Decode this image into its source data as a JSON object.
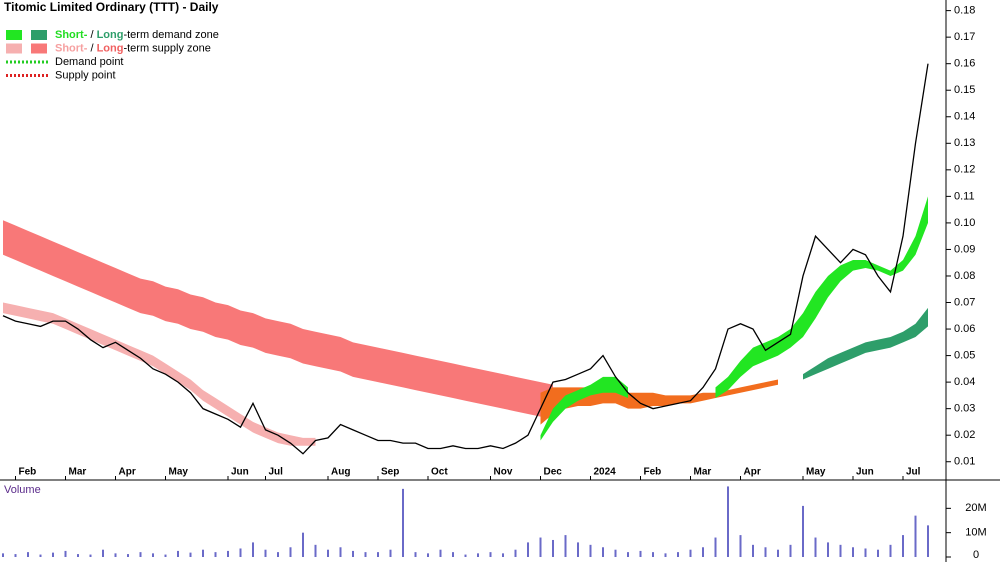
{
  "chart_data": {
    "type": "line",
    "title": "Titomic Limited Ordinary (TTT) - Daily",
    "categories": [
      null,
      "Feb",
      null,
      null,
      null,
      "Mar",
      null,
      null,
      null,
      "Apr",
      null,
      null,
      null,
      "May",
      null,
      null,
      null,
      null,
      "Jun",
      null,
      null,
      "Jul",
      null,
      null,
      null,
      null,
      "Aug",
      null,
      null,
      null,
      "Sep",
      null,
      null,
      null,
      "Oct",
      null,
      null,
      null,
      null,
      "Nov",
      null,
      null,
      null,
      "Dec",
      null,
      null,
      null,
      "2024",
      null,
      null,
      null,
      "Feb",
      null,
      null,
      null,
      "Mar",
      null,
      null,
      null,
      "Apr",
      null,
      null,
      null,
      null,
      "May",
      null,
      null,
      null,
      "Jun",
      null,
      null,
      null,
      "Jul",
      null,
      null
    ],
    "price": {
      "color": "#000000",
      "values": [
        0.065,
        0.063,
        0.062,
        0.061,
        0.063,
        0.063,
        0.06,
        0.056,
        0.053,
        0.055,
        0.052,
        0.049,
        0.045,
        0.043,
        0.04,
        0.036,
        0.03,
        0.028,
        0.026,
        0.023,
        0.032,
        0.022,
        0.02,
        0.017,
        0.013,
        0.018,
        0.019,
        0.024,
        0.022,
        0.02,
        0.018,
        0.018,
        0.017,
        0.017,
        0.015,
        0.015,
        0.016,
        0.015,
        0.015,
        0.016,
        0.015,
        0.017,
        0.02,
        0.03,
        0.04,
        0.041,
        0.043,
        0.045,
        0.05,
        0.042,
        0.036,
        0.032,
        0.03,
        0.031,
        0.032,
        0.033,
        0.038,
        0.045,
        0.06,
        0.062,
        0.06,
        0.052,
        0.055,
        0.058,
        0.08,
        0.095,
        0.09,
        0.085,
        0.09,
        0.088,
        0.08,
        0.074,
        0.095,
        0.13,
        0.16
      ]
    },
    "zones": [
      {
        "color": "#f87878",
        "upper": [
          0.101,
          0.099,
          0.097,
          0.095,
          0.093,
          0.091,
          0.089,
          0.087,
          0.085,
          0.083,
          0.081,
          0.079,
          0.078,
          0.076,
          0.075,
          0.073,
          0.072,
          0.07,
          0.069,
          0.067,
          0.066,
          0.064,
          0.063,
          0.062,
          0.06,
          0.059,
          0.058,
          0.057,
          0.055,
          0.054,
          0.053,
          0.052,
          0.051,
          0.05,
          0.049,
          0.048,
          0.047,
          0.046,
          0.045,
          0.044,
          0.043,
          0.042,
          0.041,
          0.04,
          0.039,
          null,
          null,
          null,
          null,
          null,
          null,
          null,
          null,
          null,
          null,
          null,
          null,
          null,
          null,
          null,
          null,
          null,
          null,
          null,
          null,
          null,
          null,
          null,
          null,
          null,
          null,
          null,
          null,
          null,
          null
        ],
        "lower": [
          0.088,
          0.086,
          0.084,
          0.082,
          0.08,
          0.078,
          0.076,
          0.074,
          0.072,
          0.07,
          0.068,
          0.066,
          0.065,
          0.063,
          0.062,
          0.06,
          0.059,
          0.057,
          0.056,
          0.054,
          0.053,
          0.051,
          0.05,
          0.049,
          0.047,
          0.046,
          0.045,
          0.044,
          0.042,
          0.041,
          0.04,
          0.039,
          0.038,
          0.037,
          0.036,
          0.035,
          0.034,
          0.033,
          0.032,
          0.031,
          0.03,
          0.029,
          0.028,
          0.027,
          0.026,
          null,
          null,
          null,
          null,
          null,
          null,
          null,
          null,
          null,
          null,
          null,
          null,
          null,
          null,
          null,
          null,
          null,
          null,
          null,
          null,
          null,
          null,
          null,
          null,
          null,
          null,
          null,
          null,
          null,
          null
        ]
      },
      {
        "color": "#f6b0b0",
        "upper": [
          0.07,
          0.069,
          0.068,
          0.067,
          0.066,
          0.064,
          0.062,
          0.06,
          0.058,
          0.056,
          0.054,
          0.052,
          0.05,
          0.047,
          0.044,
          0.041,
          0.037,
          0.034,
          0.031,
          0.028,
          0.025,
          0.023,
          0.021,
          0.02,
          0.019,
          0.019,
          null,
          null,
          null,
          null,
          null,
          null,
          null,
          null,
          null,
          null,
          null,
          null,
          null,
          null,
          null,
          null,
          null,
          null,
          null,
          null,
          null,
          null,
          null,
          null,
          null,
          null,
          null,
          null,
          null,
          null,
          null,
          null,
          null,
          null,
          null,
          null,
          null,
          null,
          null,
          null,
          null,
          null,
          null,
          null,
          null,
          null,
          null,
          null,
          null
        ],
        "lower": [
          0.066,
          0.065,
          0.064,
          0.063,
          0.062,
          0.06,
          0.058,
          0.056,
          0.054,
          0.052,
          0.05,
          0.048,
          0.046,
          0.043,
          0.04,
          0.037,
          0.033,
          0.03,
          0.027,
          0.024,
          0.021,
          0.019,
          0.017,
          0.016,
          0.016,
          0.016,
          null,
          null,
          null,
          null,
          null,
          null,
          null,
          null,
          null,
          null,
          null,
          null,
          null,
          null,
          null,
          null,
          null,
          null,
          null,
          null,
          null,
          null,
          null,
          null,
          null,
          null,
          null,
          null,
          null,
          null,
          null,
          null,
          null,
          null,
          null,
          null,
          null,
          null,
          null,
          null,
          null,
          null,
          null,
          null,
          null,
          null,
          null,
          null,
          null
        ]
      },
      {
        "color": "#f26d1e",
        "upper": [
          null,
          null,
          null,
          null,
          null,
          null,
          null,
          null,
          null,
          null,
          null,
          null,
          null,
          null,
          null,
          null,
          null,
          null,
          null,
          null,
          null,
          null,
          null,
          null,
          null,
          null,
          null,
          null,
          null,
          null,
          null,
          null,
          null,
          null,
          null,
          null,
          null,
          null,
          null,
          null,
          null,
          null,
          null,
          0.036,
          0.038,
          0.038,
          0.038,
          0.038,
          0.037,
          0.037,
          0.036,
          0.036,
          0.036,
          0.035,
          0.035,
          0.035,
          0.036,
          0.036,
          0.037,
          0.038,
          0.039,
          0.04,
          0.041,
          null,
          null,
          null,
          null,
          null,
          null,
          null,
          null,
          null,
          null,
          null,
          null
        ],
        "lower": [
          null,
          null,
          null,
          null,
          null,
          null,
          null,
          null,
          null,
          null,
          null,
          null,
          null,
          null,
          null,
          null,
          null,
          null,
          null,
          null,
          null,
          null,
          null,
          null,
          null,
          null,
          null,
          null,
          null,
          null,
          null,
          null,
          null,
          null,
          null,
          null,
          null,
          null,
          null,
          null,
          null,
          null,
          null,
          0.024,
          0.028,
          0.03,
          0.031,
          0.031,
          0.032,
          0.032,
          0.03,
          0.03,
          0.031,
          0.031,
          0.032,
          0.032,
          0.033,
          0.034,
          0.035,
          0.036,
          0.037,
          0.038,
          0.039,
          null,
          null,
          null,
          null,
          null,
          null,
          null,
          null,
          null,
          null,
          null,
          null
        ]
      },
      {
        "color": "#22e622",
        "upper": [
          null,
          null,
          null,
          null,
          null,
          null,
          null,
          null,
          null,
          null,
          null,
          null,
          null,
          null,
          null,
          null,
          null,
          null,
          null,
          null,
          null,
          null,
          null,
          null,
          null,
          null,
          null,
          null,
          null,
          null,
          null,
          null,
          null,
          null,
          null,
          null,
          null,
          null,
          null,
          null,
          null,
          null,
          null,
          0.02,
          0.03,
          0.035,
          0.037,
          0.039,
          0.042,
          0.042,
          0.038,
          null,
          null,
          null,
          null,
          null,
          null,
          0.038,
          0.042,
          0.048,
          0.053,
          0.055,
          0.057,
          0.06,
          0.066,
          0.074,
          0.08,
          0.084,
          0.086,
          0.086,
          0.084,
          0.082,
          0.086,
          0.095,
          0.11
        ],
        "lower": [
          null,
          null,
          null,
          null,
          null,
          null,
          null,
          null,
          null,
          null,
          null,
          null,
          null,
          null,
          null,
          null,
          null,
          null,
          null,
          null,
          null,
          null,
          null,
          null,
          null,
          null,
          null,
          null,
          null,
          null,
          null,
          null,
          null,
          null,
          null,
          null,
          null,
          null,
          null,
          null,
          null,
          null,
          null,
          0.018,
          0.025,
          0.03,
          0.033,
          0.035,
          0.036,
          0.036,
          0.034,
          null,
          null,
          null,
          null,
          null,
          null,
          0.034,
          0.037,
          0.042,
          0.046,
          0.048,
          0.05,
          0.053,
          0.057,
          0.064,
          0.072,
          0.078,
          0.082,
          0.083,
          0.082,
          0.08,
          0.082,
          0.088,
          0.1
        ]
      },
      {
        "color": "#2e9e6a",
        "upper": [
          null,
          null,
          null,
          null,
          null,
          null,
          null,
          null,
          null,
          null,
          null,
          null,
          null,
          null,
          null,
          null,
          null,
          null,
          null,
          null,
          null,
          null,
          null,
          null,
          null,
          null,
          null,
          null,
          null,
          null,
          null,
          null,
          null,
          null,
          null,
          null,
          null,
          null,
          null,
          null,
          null,
          null,
          null,
          null,
          null,
          null,
          null,
          null,
          null,
          null,
          null,
          null,
          null,
          null,
          null,
          null,
          null,
          null,
          null,
          null,
          null,
          null,
          null,
          null,
          0.043,
          0.046,
          0.049,
          0.051,
          0.053,
          0.055,
          0.056,
          0.057,
          0.059,
          0.062,
          0.068
        ],
        "lower": [
          null,
          null,
          null,
          null,
          null,
          null,
          null,
          null,
          null,
          null,
          null,
          null,
          null,
          null,
          null,
          null,
          null,
          null,
          null,
          null,
          null,
          null,
          null,
          null,
          null,
          null,
          null,
          null,
          null,
          null,
          null,
          null,
          null,
          null,
          null,
          null,
          null,
          null,
          null,
          null,
          null,
          null,
          null,
          null,
          null,
          null,
          null,
          null,
          null,
          null,
          null,
          null,
          null,
          null,
          null,
          null,
          null,
          null,
          null,
          null,
          null,
          null,
          null,
          null,
          0.041,
          0.043,
          0.045,
          0.047,
          0.049,
          0.051,
          0.052,
          0.053,
          0.055,
          0.057,
          0.061
        ]
      }
    ],
    "legend": [
      {
        "swatches": [
          "#22e622",
          "#2e9e6a"
        ],
        "parts": [
          {
            "text": "Short-",
            "color": "#22dd22"
          },
          {
            "text": " / ",
            "color": "#000000"
          },
          {
            "text": "Long",
            "color": "#2e9e6a"
          },
          {
            "text": "-term demand zone",
            "color": "#000000"
          }
        ]
      },
      {
        "swatches": [
          "#f6b0b0",
          "#f87878"
        ],
        "parts": [
          {
            "text": "Short-",
            "color": "#f6a0a0"
          },
          {
            "text": " / ",
            "color": "#000000"
          },
          {
            "text": "Long",
            "color": "#f06060"
          },
          {
            "text": "-term supply zone",
            "color": "#000000"
          }
        ]
      },
      {
        "dash": "#22cc22",
        "parts": [
          {
            "text": "Demand point",
            "color": "#000000"
          }
        ]
      },
      {
        "dash": "#dd2222",
        "parts": [
          {
            "text": "Supply point",
            "color": "#000000"
          }
        ]
      }
    ],
    "ylim": [
      0.005,
      0.184
    ],
    "yticks": [
      0.01,
      0.02,
      0.03,
      0.04,
      0.05,
      0.06,
      0.07,
      0.08,
      0.09,
      {
        "value": 0.1,
        "label": "0.10"
      },
      0.11,
      0.12,
      0.13,
      0.14,
      0.15,
      0.16,
      0.17,
      0.18
    ],
    "volume": {
      "label": "Volume",
      "color": "#6a6ac8",
      "values": [
        1500000,
        1200000,
        2000000,
        1000000,
        1800000,
        2500000,
        1200000,
        1000000,
        3000000,
        1500000,
        1200000,
        2000000,
        1500000,
        1000000,
        2500000,
        1800000,
        3000000,
        2000000,
        2500000,
        3500000,
        6000000,
        3000000,
        2000000,
        4000000,
        10000000,
        5000000,
        3000000,
        4000000,
        2500000,
        2000000,
        2000000,
        3000000,
        28000000,
        2000000,
        1500000,
        3000000,
        2000000,
        1000000,
        1500000,
        2000000,
        1500000,
        3000000,
        6000000,
        8000000,
        7000000,
        9000000,
        6000000,
        5000000,
        4000000,
        3000000,
        2000000,
        2500000,
        2000000,
        1500000,
        2000000,
        3000000,
        4000000,
        8000000,
        29000000,
        9000000,
        5000000,
        4000000,
        3000000,
        5000000,
        21000000,
        8000000,
        6000000,
        5000000,
        4000000,
        3500000,
        3000000,
        5000000,
        9000000,
        17000000,
        13000000
      ],
      "ylim": [
        0,
        30000000
      ],
      "yticks": [
        0,
        {
          "value": 10000000,
          "label": "10M"
        },
        {
          "value": 20000000,
          "label": "20M"
        }
      ]
    }
  }
}
